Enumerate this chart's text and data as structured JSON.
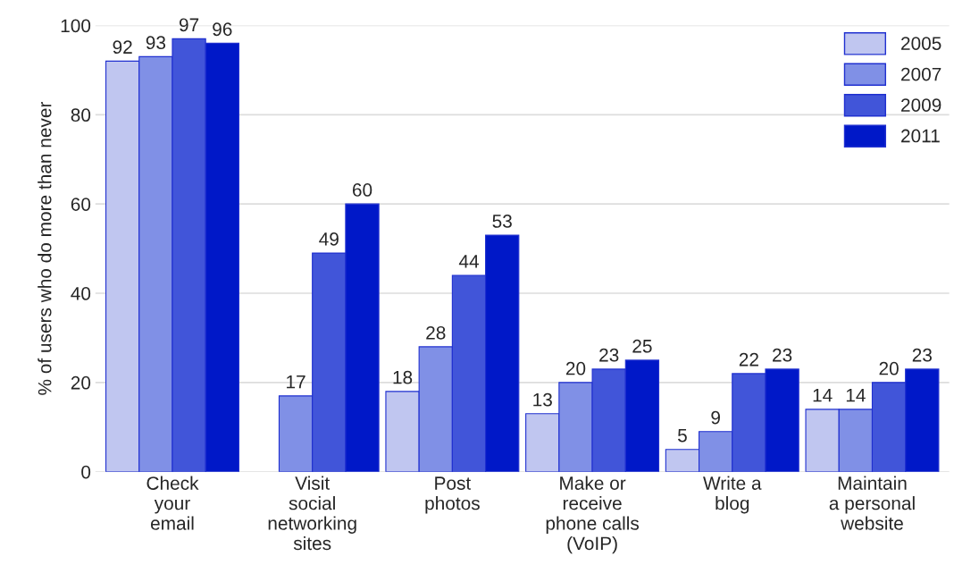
{
  "chart_data": {
    "type": "bar",
    "categories": [
      "Check\nyour\nemail",
      "Visit\nsocial\nnetworking\nsites",
      "Post\nphotos",
      "Make or\nreceive\nphone calls\n(VoIP)",
      "Write a\nblog",
      "Maintain\na personal\nwebsite"
    ],
    "series": [
      {
        "name": "2005",
        "color": "#c0c6f0",
        "values": [
          92,
          null,
          18,
          13,
          5,
          14
        ]
      },
      {
        "name": "2007",
        "color": "#8090e6",
        "values": [
          93,
          17,
          28,
          20,
          9,
          14
        ]
      },
      {
        "name": "2009",
        "color": "#4155d9",
        "values": [
          97,
          49,
          44,
          23,
          22,
          20
        ]
      },
      {
        "name": "2011",
        "color": "#0018c8",
        "values": [
          96,
          60,
          53,
          25,
          23,
          23
        ]
      }
    ],
    "ylabel": "% of users who do more than never",
    "ylim": [
      0,
      100
    ],
    "yticks": [
      0,
      20,
      40,
      60,
      80,
      100
    ],
    "grid": "y",
    "legend": "top right",
    "data_labels": true
  }
}
